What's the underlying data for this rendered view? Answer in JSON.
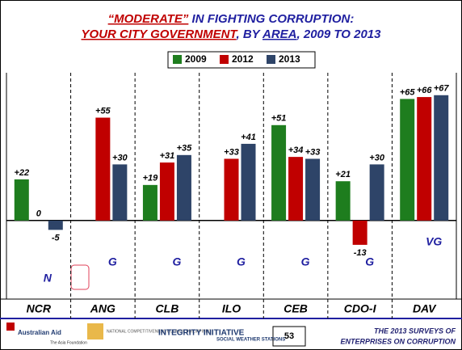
{
  "chart_data": {
    "type": "bar",
    "title": [
      [
        {
          "text": "“MODERATE”",
          "color": "#c00000",
          "underline": true
        },
        {
          "text": " IN FIGHTING CORRUPTION:",
          "color": "#1f1fa0",
          "underline": false
        }
      ],
      [
        {
          "text": "YOUR CITY GOVERNMENT",
          "color": "#c00000",
          "underline": true
        },
        {
          "text": ", BY ",
          "color": "#1f1fa0",
          "underline": false
        },
        {
          "text": "AREA",
          "color": "#1f1fa0",
          "underline": true
        },
        {
          "text": ", 2009 TO 2013",
          "color": "#1f1fa0",
          "underline": false
        }
      ]
    ],
    "categories": [
      "NCR",
      "ANG",
      "CLB",
      "ILO",
      "CEB",
      "CDO-I",
      "DAV"
    ],
    "ratings": [
      "N",
      "G",
      "G",
      "G",
      "G",
      "G",
      "VG"
    ],
    "series": [
      {
        "name": "2009",
        "color": "#1e7d1e",
        "values": [
          22,
          null,
          19,
          null,
          51,
          21,
          65
        ],
        "value_labels": [
          "+22",
          null,
          "+19",
          null,
          "+51",
          "+21",
          "+65"
        ]
      },
      {
        "name": "2012",
        "color": "#c00000",
        "values": [
          0,
          55,
          31,
          33,
          34,
          -13,
          66
        ],
        "value_labels": [
          "0",
          "+55",
          "+31",
          "+33",
          "+34",
          "-13",
          "+66"
        ]
      },
      {
        "name": "2013",
        "color": "#2e4468",
        "values": [
          -5,
          30,
          35,
          41,
          33,
          30,
          67
        ],
        "value_labels": [
          "-5",
          "+30",
          "+35",
          "+41",
          "+33",
          "+30",
          "+67"
        ]
      }
    ],
    "ylim": [
      -42,
      79
    ],
    "footer": {
      "logos": [
        "Australian Aid",
        "The Asia Foundation",
        "NATIONAL COMPETITIVENESS COUNCIL PHILIPPINES",
        "INTEGRITY INITIATIVE",
        "SOCIAL WEATHER STATIONS"
      ],
      "page": "53",
      "caption": [
        "THE 2013 SURVEYS OF",
        "ENTERPRISES ON CORRUPTION"
      ]
    }
  }
}
